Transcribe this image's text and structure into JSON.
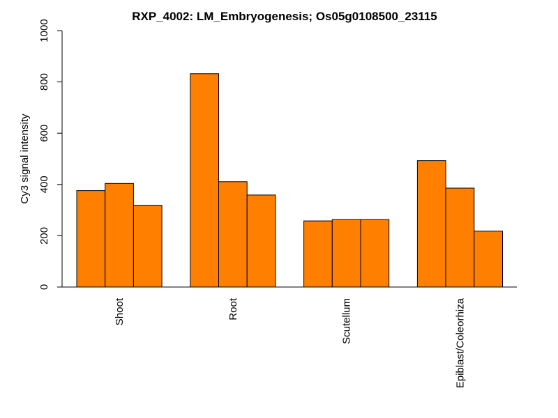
{
  "chart_data": {
    "type": "bar",
    "title": "RXP_4002: LM_Embryogenesis; Os05g0108500_23115",
    "xlabel": "",
    "ylabel": "Cy3 signal intensity",
    "ylim": [
      0,
      1000
    ],
    "yticks": [
      0,
      200,
      400,
      600,
      800,
      1000
    ],
    "grid": false,
    "bar_color": "#FF7F00",
    "categories": [
      "Shoot",
      "Root",
      "Scutellum",
      "Epiblast/Coleorhiza"
    ],
    "bars_per_group": 3,
    "values": [
      [
        376,
        404,
        319
      ],
      [
        832,
        411,
        359
      ],
      [
        258,
        263,
        263
      ],
      [
        493,
        386,
        218
      ]
    ]
  }
}
